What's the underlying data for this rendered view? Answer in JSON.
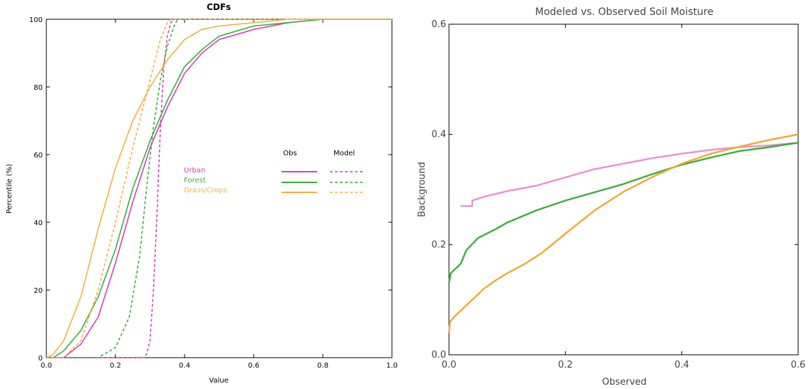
{
  "chart_data": [
    {
      "type": "line",
      "title": "CDFs",
      "xlabel": "Value",
      "ylabel": "Percentile (%)",
      "xlim": [
        0.0,
        1.0
      ],
      "ylim": [
        0,
        100
      ],
      "xticks": [
        "0.0",
        "0.2",
        "0.4",
        "0.6",
        "0.8",
        "1.0"
      ],
      "yticks": [
        "0",
        "20",
        "40",
        "60",
        "80",
        "100"
      ],
      "legend": {
        "position": "center-right",
        "col_obs": "Obs",
        "col_model": "Model",
        "entries": [
          "Urban",
          "Forest",
          "Grass/Crops"
        ]
      },
      "colors": {
        "Urban": "#d63fbf",
        "Forest": "#3cae3c",
        "Grass/Crops": "#f4b040"
      },
      "series": [
        {
          "name": "Urban",
          "kind": "Obs",
          "color": "#d63fbf",
          "dashed": false,
          "points": [
            [
              0.0,
              0
            ],
            [
              0.05,
              0
            ],
            [
              0.1,
              4
            ],
            [
              0.15,
              12
            ],
            [
              0.2,
              28
            ],
            [
              0.25,
              46
            ],
            [
              0.3,
              62
            ],
            [
              0.35,
              74
            ],
            [
              0.4,
              84
            ],
            [
              0.45,
              90
            ],
            [
              0.5,
              94
            ],
            [
              0.6,
              97
            ],
            [
              0.7,
              99
            ],
            [
              0.8,
              100
            ],
            [
              1.0,
              100
            ]
          ]
        },
        {
          "name": "Urban",
          "kind": "Model",
          "color": "#d63fbf",
          "dashed": true,
          "points": [
            [
              0.0,
              0
            ],
            [
              0.28,
              0
            ],
            [
              0.29,
              1
            ],
            [
              0.3,
              5
            ],
            [
              0.31,
              20
            ],
            [
              0.32,
              42
            ],
            [
              0.33,
              68
            ],
            [
              0.34,
              86
            ],
            [
              0.35,
              95
            ],
            [
              0.36,
              99
            ],
            [
              0.37,
              100
            ],
            [
              1.0,
              100
            ]
          ]
        },
        {
          "name": "Forest",
          "kind": "Obs",
          "color": "#3cae3c",
          "dashed": false,
          "points": [
            [
              0.0,
              0
            ],
            [
              0.02,
              0
            ],
            [
              0.05,
              2
            ],
            [
              0.1,
              8
            ],
            [
              0.15,
              18
            ],
            [
              0.2,
              32
            ],
            [
              0.25,
              50
            ],
            [
              0.3,
              64
            ],
            [
              0.35,
              76
            ],
            [
              0.4,
              86
            ],
            [
              0.45,
              91
            ],
            [
              0.5,
              95
            ],
            [
              0.6,
              98
            ],
            [
              0.7,
              99
            ],
            [
              0.8,
              100
            ],
            [
              1.0,
              100
            ]
          ]
        },
        {
          "name": "Forest",
          "kind": "Model",
          "color": "#3cae3c",
          "dashed": true,
          "points": [
            [
              0.0,
              0
            ],
            [
              0.15,
              0
            ],
            [
              0.2,
              3
            ],
            [
              0.24,
              12
            ],
            [
              0.27,
              30
            ],
            [
              0.29,
              50
            ],
            [
              0.31,
              68
            ],
            [
              0.33,
              82
            ],
            [
              0.35,
              92
            ],
            [
              0.37,
              98
            ],
            [
              0.38,
              100
            ],
            [
              1.0,
              100
            ]
          ]
        },
        {
          "name": "Grass/Crops",
          "kind": "Obs",
          "color": "#f4b040",
          "dashed": false,
          "points": [
            [
              0.0,
              0
            ],
            [
              0.02,
              1
            ],
            [
              0.05,
              5
            ],
            [
              0.1,
              18
            ],
            [
              0.15,
              38
            ],
            [
              0.2,
              56
            ],
            [
              0.25,
              70
            ],
            [
              0.3,
              80
            ],
            [
              0.35,
              88
            ],
            [
              0.4,
              94
            ],
            [
              0.45,
              97
            ],
            [
              0.5,
              98
            ],
            [
              0.6,
              99
            ],
            [
              0.7,
              100
            ],
            [
              1.0,
              100
            ]
          ]
        },
        {
          "name": "Grass/Crops",
          "kind": "Model",
          "color": "#f4b040",
          "dashed": true,
          "points": [
            [
              0.0,
              0
            ],
            [
              0.05,
              0
            ],
            [
              0.1,
              5
            ],
            [
              0.15,
              20
            ],
            [
              0.2,
              40
            ],
            [
              0.25,
              62
            ],
            [
              0.3,
              82
            ],
            [
              0.33,
              94
            ],
            [
              0.35,
              99
            ],
            [
              0.36,
              100
            ],
            [
              1.0,
              100
            ]
          ]
        }
      ]
    },
    {
      "type": "line",
      "title": "Modeled vs. Observed Soil Moisture",
      "xlabel": "Observed",
      "ylabel": "Background",
      "xlim": [
        0.0,
        0.6
      ],
      "ylim": [
        0.0,
        0.6
      ],
      "xticks": [
        "0.0",
        "0.2",
        "0.4",
        "0.6"
      ],
      "yticks": [
        "0.0",
        "0.2",
        "0.4",
        "0.6"
      ],
      "series": [
        {
          "name": "Urban",
          "color": "#e890d6",
          "points": [
            [
              0.02,
              0.27
            ],
            [
              0.04,
              0.27
            ],
            [
              0.04,
              0.28
            ],
            [
              0.06,
              0.287
            ],
            [
              0.1,
              0.297
            ],
            [
              0.15,
              0.307
            ],
            [
              0.2,
              0.322
            ],
            [
              0.25,
              0.337
            ],
            [
              0.3,
              0.347
            ],
            [
              0.35,
              0.357
            ],
            [
              0.4,
              0.365
            ],
            [
              0.45,
              0.372
            ],
            [
              0.5,
              0.377
            ],
            [
              0.55,
              0.38
            ],
            [
              0.6,
              0.385
            ]
          ]
        },
        {
          "name": "Forest",
          "color": "#3cae3c",
          "points": [
            [
              0.0,
              0.13
            ],
            [
              0.003,
              0.148
            ],
            [
              0.01,
              0.155
            ],
            [
              0.02,
              0.165
            ],
            [
              0.03,
              0.19
            ],
            [
              0.05,
              0.212
            ],
            [
              0.08,
              0.228
            ],
            [
              0.1,
              0.24
            ],
            [
              0.15,
              0.262
            ],
            [
              0.2,
              0.28
            ],
            [
              0.25,
              0.295
            ],
            [
              0.3,
              0.31
            ],
            [
              0.35,
              0.328
            ],
            [
              0.4,
              0.345
            ],
            [
              0.45,
              0.358
            ],
            [
              0.5,
              0.37
            ],
            [
              0.55,
              0.377
            ],
            [
              0.6,
              0.385
            ]
          ]
        },
        {
          "name": "Grass/Crops",
          "color": "#f4a830",
          "points": [
            [
              0.0,
              0.04
            ],
            [
              0.002,
              0.06
            ],
            [
              0.01,
              0.07
            ],
            [
              0.02,
              0.08
            ],
            [
              0.04,
              0.1
            ],
            [
              0.06,
              0.12
            ],
            [
              0.08,
              0.135
            ],
            [
              0.1,
              0.148
            ],
            [
              0.13,
              0.165
            ],
            [
              0.16,
              0.185
            ],
            [
              0.2,
              0.22
            ],
            [
              0.25,
              0.262
            ],
            [
              0.3,
              0.296
            ],
            [
              0.35,
              0.323
            ],
            [
              0.4,
              0.347
            ],
            [
              0.45,
              0.365
            ],
            [
              0.5,
              0.378
            ],
            [
              0.55,
              0.39
            ],
            [
              0.6,
              0.4
            ]
          ]
        }
      ]
    }
  ]
}
